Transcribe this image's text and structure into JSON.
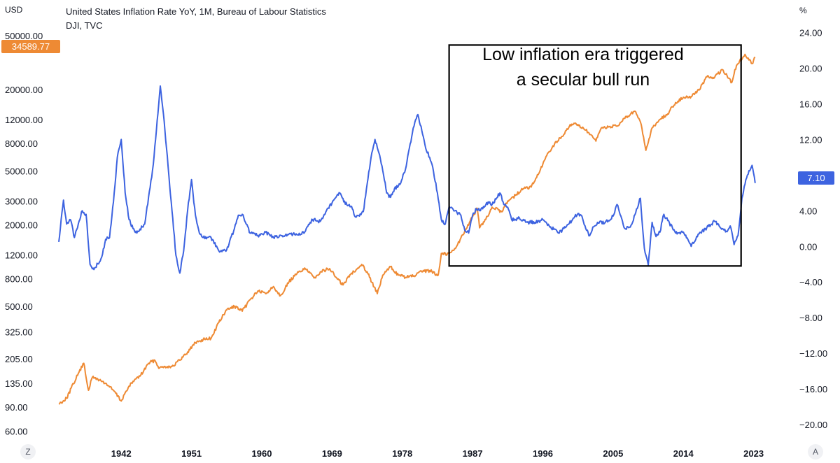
{
  "header": {
    "left_unit": "USD",
    "right_unit": "%",
    "title": "United States Inflation Rate YoY, 1M, Bureau of Labour Statistics",
    "subtitle": "DJI, TVC"
  },
  "corners": {
    "left": "Z",
    "right": "A"
  },
  "annotation": {
    "line1": "Low inflation era triggered",
    "line2": "a secular bull run"
  },
  "colors": {
    "dji": "#ee8a34",
    "inflation": "#3d63e0",
    "background": "#ffffff",
    "box": "#000000"
  },
  "chart_data": {
    "type": "line",
    "title": "United States Inflation Rate YoY, 1M, Bureau of Labour Statistics",
    "subtitle": "DJI, TVC",
    "legend_position": "top-left",
    "x_range": [
      1934.0,
      2024.2
    ],
    "x_ticks": [
      {
        "label": "1942",
        "value": 1942
      },
      {
        "label": "1951",
        "value": 1951
      },
      {
        "label": "1960",
        "value": 1960
      },
      {
        "label": "1969",
        "value": 1969
      },
      {
        "label": "1978",
        "value": 1978
      },
      {
        "label": "1987",
        "value": 1987
      },
      {
        "label": "1996",
        "value": 1996
      },
      {
        "label": "2005",
        "value": 2005
      },
      {
        "label": "2014",
        "value": 2014
      },
      {
        "label": "2023",
        "value": 2023
      }
    ],
    "left_axis": {
      "unit": "USD",
      "scale": "log",
      "range": [
        51,
        64000
      ],
      "ticks": [
        {
          "label": "50000.00",
          "value": 50000
        },
        {
          "label": "20000.00",
          "value": 20000
        },
        {
          "label": "12000.00",
          "value": 12000
        },
        {
          "label": "8000.00",
          "value": 8000
        },
        {
          "label": "5000.00",
          "value": 5000
        },
        {
          "label": "3000.00",
          "value": 3000
        },
        {
          "label": "2000.00",
          "value": 2000
        },
        {
          "label": "1200.00",
          "value": 1200
        },
        {
          "label": "800.00",
          "value": 800
        },
        {
          "label": "500.00",
          "value": 500
        },
        {
          "label": "325.00",
          "value": 325
        },
        {
          "label": "205.00",
          "value": 205
        },
        {
          "label": "135.00",
          "value": 135
        },
        {
          "label": "90.00",
          "value": 90
        },
        {
          "label": "60.00",
          "value": 60
        }
      ]
    },
    "right_axis": {
      "unit": "%",
      "scale": "linear",
      "range": [
        -21.8,
        25.3
      ],
      "ticks": [
        {
          "label": "24.00",
          "value": 24
        },
        {
          "label": "20.00",
          "value": 20
        },
        {
          "label": "16.00",
          "value": 16
        },
        {
          "label": "12.00",
          "value": 12
        },
        {
          "label": "8.00",
          "value": 8
        },
        {
          "label": "4.00",
          "value": 4
        },
        {
          "label": "0.00",
          "value": 0
        },
        {
          "label": "−4.00",
          "value": -4
        },
        {
          "label": "−8.00",
          "value": -8
        },
        {
          "label": "−12.00",
          "value": -12
        },
        {
          "label": "−16.00",
          "value": -16
        },
        {
          "label": "−20.00",
          "value": -20
        }
      ]
    },
    "annotation_box": {
      "x_range": [
        1984.0,
        2021.4
      ],
      "y_range_pct": [
        -2.2,
        22.6
      ],
      "text": "Low inflation era triggered a secular bull run"
    },
    "series": [
      {
        "name": "DJI, TVC",
        "axis": "left",
        "color": "#ee8a34",
        "last_value": 34589.77,
        "last_label": "34589.77",
        "x": [
          1934.0,
          1935.0,
          1936.5,
          1937.2,
          1937.8,
          1938.3,
          1939.0,
          1940.0,
          1941.0,
          1942.0,
          1942.5,
          1943.5,
          1944.5,
          1945.5,
          1946.3,
          1946.9,
          1947.5,
          1948.5,
          1949.5,
          1950.5,
          1951.5,
          1952.5,
          1953.5,
          1954.5,
          1955.5,
          1956.5,
          1957.5,
          1958.5,
          1959.5,
          1960.5,
          1961.5,
          1962.4,
          1963.5,
          1964.5,
          1965.5,
          1966.7,
          1967.5,
          1968.7,
          1969.5,
          1970.4,
          1971.5,
          1972.8,
          1973.5,
          1974.8,
          1975.5,
          1976.5,
          1977.5,
          1978.5,
          1979.5,
          1980.5,
          1981.5,
          1982.6,
          1983.0,
          1984.0,
          1985.0,
          1986.0,
          1987.6,
          1987.9,
          1988.5,
          1989.5,
          1990.7,
          1991.5,
          1992.5,
          1993.5,
          1994.5,
          1995.5,
          1996.5,
          1997.5,
          1998.5,
          1999.5,
          2000.5,
          2001.5,
          2002.8,
          2003.5,
          2004.5,
          2005.5,
          2006.5,
          2007.8,
          2008.5,
          2009.2,
          2010.0,
          2011.0,
          2012.0,
          2013.0,
          2014.0,
          2015.0,
          2016.0,
          2017.0,
          2018.0,
          2019.0,
          2020.2,
          2020.6,
          2021.0,
          2021.9,
          2022.4,
          2022.8,
          2023.2
        ],
        "y": [
          95,
          105,
          160,
          190,
          120,
          150,
          145,
          135,
          120,
          100,
          115,
          140,
          155,
          190,
          200,
          175,
          180,
          180,
          200,
          230,
          270,
          285,
          290,
          380,
          470,
          500,
          460,
          560,
          650,
          620,
          700,
          600,
          760,
          870,
          960,
          810,
          900,
          950,
          820,
          720,
          880,
          1020,
          900,
          620,
          850,
          980,
          850,
          820,
          840,
          900,
          920,
          850,
          1230,
          1220,
          1400,
          1800,
          2650,
          1900,
          2100,
          2700,
          2500,
          3000,
          3300,
          3700,
          3800,
          4800,
          6500,
          7900,
          9000,
          11000,
          11000,
          10000,
          8300,
          10400,
          10600,
          10700,
          12200,
          13800,
          11500,
          7100,
          10400,
          12000,
          13200,
          16000,
          17500,
          17700,
          19800,
          24700,
          24500,
          28000,
          22500,
          28000,
          31000,
          36300,
          33000,
          31000,
          34590
        ]
      },
      {
        "name": "United States Inflation Rate YoY",
        "axis": "right",
        "color": "#3d63e0",
        "last_value": 7.1,
        "last_label": "7.10",
        "x": [
          1934.0,
          1934.6,
          1935.0,
          1935.5,
          1936.0,
          1937.0,
          1937.5,
          1938.0,
          1938.5,
          1939.5,
          1940.0,
          1940.5,
          1941.0,
          1941.5,
          1942.0,
          1942.5,
          1943.0,
          1943.5,
          1944.0,
          1945.0,
          1946.0,
          1946.5,
          1947.0,
          1947.5,
          1948.0,
          1948.5,
          1949.0,
          1949.5,
          1950.0,
          1950.5,
          1951.0,
          1951.5,
          1952.0,
          1952.5,
          1953.5,
          1954.5,
          1955.5,
          1956.5,
          1957.0,
          1957.5,
          1958.0,
          1958.5,
          1959.5,
          1960.5,
          1961.5,
          1962.5,
          1963.5,
          1964.5,
          1965.5,
          1966.5,
          1967.5,
          1968.5,
          1969.5,
          1970.0,
          1970.5,
          1971.5,
          1972.0,
          1972.5,
          1973.0,
          1973.5,
          1974.0,
          1974.5,
          1975.0,
          1975.5,
          1976.0,
          1976.5,
          1977.0,
          1977.5,
          1978.0,
          1978.5,
          1979.0,
          1979.5,
          1980.0,
          1980.5,
          1981.0,
          1981.5,
          1982.0,
          1982.5,
          1983.0,
          1983.5,
          1984.0,
          1985.0,
          1985.5,
          1986.0,
          1986.5,
          1987.0,
          1987.5,
          1988.0,
          1988.5,
          1989.0,
          1989.5,
          1990.0,
          1990.5,
          1991.0,
          1991.5,
          1992.0,
          1992.5,
          1993.0,
          1994.0,
          1995.0,
          1996.0,
          1997.0,
          1998.0,
          1999.0,
          2000.0,
          2000.5,
          2001.0,
          2001.5,
          2002.0,
          2002.5,
          2003.0,
          2004.0,
          2005.0,
          2005.5,
          2006.0,
          2006.5,
          2007.0,
          2007.5,
          2008.0,
          2008.5,
          2009.0,
          2009.5,
          2010.0,
          2010.5,
          2011.0,
          2011.5,
          2012.0,
          2013.0,
          2014.0,
          2015.0,
          2016.0,
          2017.0,
          2018.0,
          2019.0,
          2019.5,
          2020.0,
          2020.5,
          2021.0,
          2021.5,
          2022.0,
          2022.4,
          2022.8,
          2023.2
        ],
        "y": [
          0.5,
          5.2,
          2.5,
          3.0,
          1.0,
          4.0,
          3.6,
          -2.0,
          -2.6,
          -1.2,
          0.8,
          1.0,
          5.0,
          10.0,
          12.0,
          6.0,
          3.0,
          2.0,
          1.5,
          2.5,
          8.5,
          13.0,
          18.0,
          14.0,
          9.0,
          4.0,
          -1.0,
          -3.0,
          -0.5,
          4.0,
          7.5,
          3.5,
          1.5,
          1.0,
          1.0,
          -0.5,
          -0.4,
          2.0,
          3.5,
          3.6,
          2.5,
          1.5,
          1.2,
          1.6,
          1.0,
          1.2,
          1.4,
          1.3,
          1.6,
          3.0,
          2.8,
          4.3,
          5.5,
          6.0,
          5.0,
          4.5,
          3.3,
          3.4,
          3.9,
          7.0,
          10.0,
          12.0,
          10.5,
          8.5,
          6.0,
          5.5,
          6.5,
          6.8,
          7.6,
          9.0,
          11.5,
          13.5,
          14.8,
          13.0,
          11.0,
          10.0,
          8.4,
          6.0,
          3.0,
          2.5,
          4.5,
          3.8,
          3.5,
          1.8,
          1.5,
          3.5,
          4.2,
          4.0,
          4.4,
          5.0,
          4.7,
          5.3,
          6.0,
          4.7,
          4.4,
          3.0,
          3.0,
          3.2,
          2.7,
          2.7,
          3.0,
          2.2,
          1.5,
          2.2,
          3.2,
          3.7,
          3.4,
          2.0,
          1.2,
          2.2,
          2.7,
          2.7,
          3.4,
          4.7,
          3.4,
          2.0,
          2.1,
          2.7,
          4.2,
          5.4,
          -0.2,
          -2.1,
          2.7,
          1.1,
          1.6,
          3.6,
          2.9,
          1.5,
          1.6,
          0.0,
          1.4,
          2.1,
          2.8,
          2.0,
          1.7,
          2.3,
          0.2,
          1.2,
          5.4,
          7.5,
          8.5,
          9.1,
          7.1
        ]
      }
    ]
  }
}
